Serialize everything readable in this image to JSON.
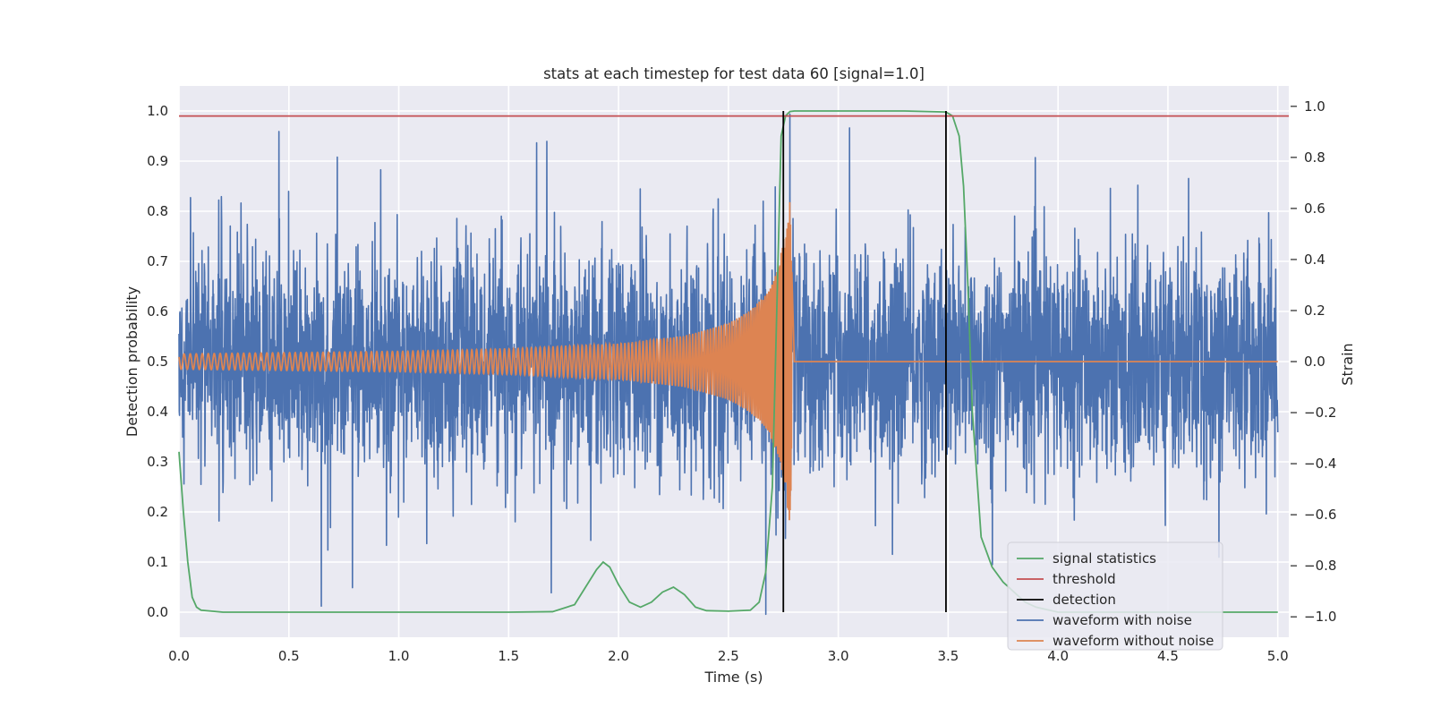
{
  "chart_data": {
    "type": "line",
    "title": "stats at each timestep for test data 60 [signal=1.0]",
    "xlabel": "Time (s)",
    "ylabel": "Detection probability",
    "y2label": "Strain",
    "xlim": [
      0.0,
      5.05
    ],
    "ylim": [
      -0.05,
      1.05
    ],
    "y2lim": [
      -1.08,
      1.08
    ],
    "x_ticks": [
      0.0,
      0.5,
      1.0,
      1.5,
      2.0,
      2.5,
      3.0,
      3.5,
      4.0,
      4.5,
      5.0
    ],
    "x_tick_labels": [
      "0.0",
      "0.5",
      "1.0",
      "1.5",
      "2.0",
      "2.5",
      "3.0",
      "3.5",
      "4.0",
      "4.5",
      "5.0"
    ],
    "y_ticks": [
      0.0,
      0.1,
      0.2,
      0.3,
      0.4,
      0.5,
      0.6,
      0.7,
      0.8,
      0.9,
      1.0
    ],
    "y_tick_labels": [
      "0.0",
      "0.1",
      "0.2",
      "0.3",
      "0.4",
      "0.5",
      "0.6",
      "0.7",
      "0.8",
      "0.9",
      "1.0"
    ],
    "y2_ticks": [
      -1.0,
      -0.8,
      -0.6,
      -0.4,
      -0.2,
      0.0,
      0.2,
      0.4,
      0.6,
      0.8,
      1.0
    ],
    "y2_tick_labels": [
      "−1.0",
      "−0.8",
      "−0.6",
      "−0.4",
      "−0.2",
      "0.0",
      "0.2",
      "0.4",
      "0.6",
      "0.8",
      "1.0"
    ],
    "grid": true,
    "legend_position": "lower-right",
    "colors": {
      "signal": "#55a868",
      "threshold": "#c44e52",
      "detection": "#000000",
      "noisy": "#4c72b0",
      "clean": "#dd8452",
      "plot_bg": "#eaeaf2",
      "grid": "#ffffff"
    },
    "threshold": 0.99,
    "detections": [
      {
        "x": 2.75,
        "y_from": 0.0,
        "y_to": 1.0
      },
      {
        "x": 3.49,
        "y_from": 0.0,
        "y_to": 1.0
      }
    ],
    "signal_statistics": {
      "x": [
        0.0,
        0.02,
        0.04,
        0.06,
        0.08,
        0.1,
        0.15,
        0.2,
        0.5,
        1.0,
        1.5,
        1.7,
        1.8,
        1.85,
        1.9,
        1.93,
        1.96,
        2.0,
        2.05,
        2.1,
        2.15,
        2.2,
        2.25,
        2.3,
        2.35,
        2.4,
        2.5,
        2.6,
        2.64,
        2.67,
        2.7,
        2.72,
        2.74,
        2.76,
        2.78,
        2.8,
        3.0,
        3.3,
        3.49,
        3.52,
        3.55,
        3.57,
        3.59,
        3.61,
        3.65,
        3.7,
        3.75,
        3.8,
        3.85,
        3.9,
        4.0,
        4.5,
        5.0
      ],
      "y": [
        0.32,
        0.2,
        0.1,
        0.03,
        0.01,
        0.004,
        0.002,
        0.0,
        0.0,
        0.0,
        0.0,
        0.001,
        0.015,
        0.05,
        0.085,
        0.1,
        0.09,
        0.055,
        0.02,
        0.01,
        0.02,
        0.04,
        0.05,
        0.035,
        0.01,
        0.003,
        0.002,
        0.004,
        0.02,
        0.08,
        0.25,
        0.6,
        0.95,
        0.99,
        0.999,
        1.0,
        1.0,
        1.0,
        0.998,
        0.99,
        0.95,
        0.85,
        0.65,
        0.4,
        0.15,
        0.09,
        0.06,
        0.04,
        0.02,
        0.01,
        0.0,
        0.0,
        0.0
      ]
    },
    "waveform_without_noise": {
      "description_merger_time": 2.78,
      "envelope": {
        "x": [
          0.0,
          1.0,
          1.5,
          2.0,
          2.3,
          2.5,
          2.6,
          2.68,
          2.73,
          2.76,
          2.78,
          2.8,
          5.0
        ],
        "strain": [
          0.03,
          0.04,
          0.05,
          0.07,
          0.1,
          0.15,
          0.2,
          0.27,
          0.38,
          0.52,
          0.64,
          0.0,
          0.0
        ]
      }
    },
    "waveform_with_noise": {
      "noise_range_strain": [
        -0.95,
        0.95
      ],
      "typical_spread_strain": 0.55
    },
    "legend": [
      {
        "key": "signal",
        "label": "signal statistics"
      },
      {
        "key": "threshold",
        "label": "threshold"
      },
      {
        "key": "detection",
        "label": "detection"
      },
      {
        "key": "noisy",
        "label": "waveform with noise"
      },
      {
        "key": "clean",
        "label": "waveform without noise"
      }
    ]
  }
}
